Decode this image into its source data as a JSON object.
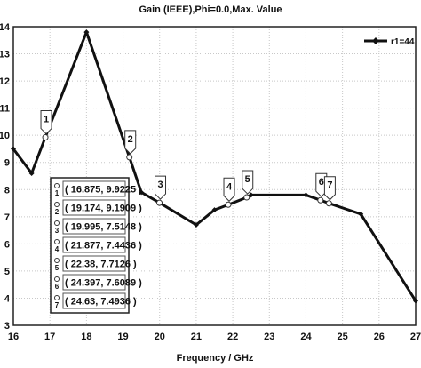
{
  "chart_data": {
    "type": "line",
    "title": "Gain (IEEE),Phi=0.0,Max. Value",
    "xlabel": "Frequency / GHz",
    "ylabel": "",
    "xlim": [
      16,
      27
    ],
    "ylim": [
      3,
      14
    ],
    "x_ticks": [
      16,
      17,
      18,
      19,
      20,
      21,
      22,
      23,
      24,
      25,
      26,
      27
    ],
    "y_ticks": [
      3,
      4,
      5,
      6,
      7,
      8,
      9,
      10,
      11,
      12,
      13,
      14
    ],
    "grid": true,
    "legend_position": "top-right",
    "series": [
      {
        "name": "r1=44",
        "color": "#111111",
        "x": [
          16.0,
          16.5,
          16.875,
          18.0,
          19.174,
          19.5,
          19.995,
          21.0,
          21.5,
          21.877,
          22.38,
          22.5,
          24.0,
          24.397,
          24.63,
          25.5,
          27.0
        ],
        "y": [
          9.5,
          8.6,
          9.9225,
          13.8,
          9.1909,
          7.9,
          7.5148,
          6.7,
          7.25,
          7.4436,
          7.7126,
          7.8,
          7.8,
          7.6089,
          7.4936,
          7.1,
          3.9
        ]
      }
    ],
    "markers": [
      {
        "id": "1",
        "label": "( 16.875, 9.9225 )",
        "x": 16.875,
        "y": 9.9225
      },
      {
        "id": "2",
        "label": "( 19.174, 9.1909 )",
        "x": 19.174,
        "y": 9.1909
      },
      {
        "id": "3",
        "label": "( 19.995, 7.5148 )",
        "x": 19.995,
        "y": 7.5148
      },
      {
        "id": "4",
        "label": "( 21.877, 7.4436 )",
        "x": 21.877,
        "y": 7.4436
      },
      {
        "id": "5",
        "label": "( 22.38, 7.7126 )",
        "x": 22.38,
        "y": 7.7126
      },
      {
        "id": "6",
        "label": "( 24.397, 7.6089 )",
        "x": 24.397,
        "y": 7.6089
      },
      {
        "id": "7",
        "label": "( 24.63, 7.4936 )",
        "x": 24.63,
        "y": 7.4936
      }
    ]
  }
}
